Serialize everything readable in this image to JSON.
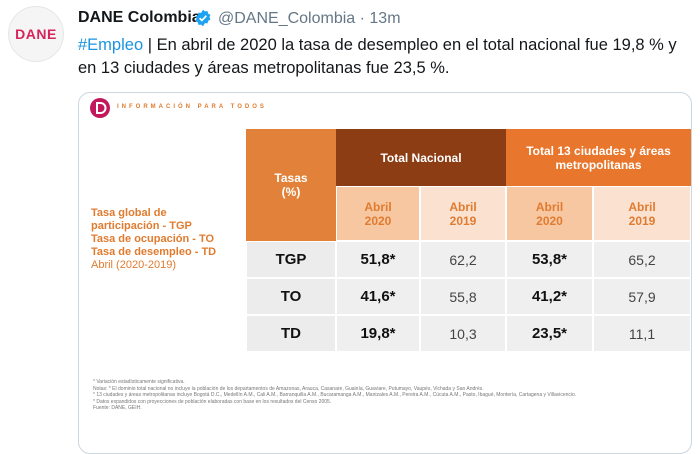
{
  "tweet": {
    "avatar_text": "DANE",
    "author": "DANE Colombia",
    "meta": "@DANE_Colombia · 13m",
    "hashtag": "#Empleo",
    "text": " | En abril de 2020 la tasa de desempleo en el total nacional fue 19,8 % y en 13 ciudades y áreas metropolitanas fue 23,5 %."
  },
  "card": {
    "brand": "INFORMACIÓN PARA TODOS",
    "legend": [
      "Tasa global de participación - TGP",
      "Tasa de ocupación - TO",
      "Tasa de desempleo - TD"
    ],
    "legend_period": "Abril (2020-2019)",
    "table": {
      "corner": "Tasas (%)",
      "groups": [
        "Total Nacional",
        "Total 13 ciudades y áreas metropolitanas"
      ],
      "periods": [
        "Abril 2020",
        "Abril 2019",
        "Abril 2020",
        "Abril 2019"
      ],
      "rows": [
        [
          "TGP",
          "51,8*",
          "62,2",
          "53,8*",
          "65,2"
        ],
        [
          "TO",
          "41,6*",
          "55,8",
          "41,2*",
          "57,9"
        ],
        [
          "TD",
          "19,8*",
          "10,3",
          "23,5*",
          "11,1"
        ]
      ]
    },
    "footnotes": [
      "* Variación estadísticamente significativa.",
      "Notas: * El dominio total nacional no incluye la población de los departamentos de Amazonas, Arauca, Casanare, Guainía, Guaviare, Putumayo, Vaupés, Vichada y San Andrés.",
      "* 13 ciudades y áreas metropolitanas incluye Bogotá D.C., Medellín A.M., Cali A.M., Barranquilla A.M., Bucaramanga A.M., Manizales A.M., Pereira A.M., Cúcuta A.M., Pasto, Ibagué, Montería, Cartagena y Villavicencio.",
      "* Datos expandidos con proyecciones de población elaboradas con base en los resultados del Censo 2005.",
      "Fuente: DANE, GEIH."
    ]
  }
}
